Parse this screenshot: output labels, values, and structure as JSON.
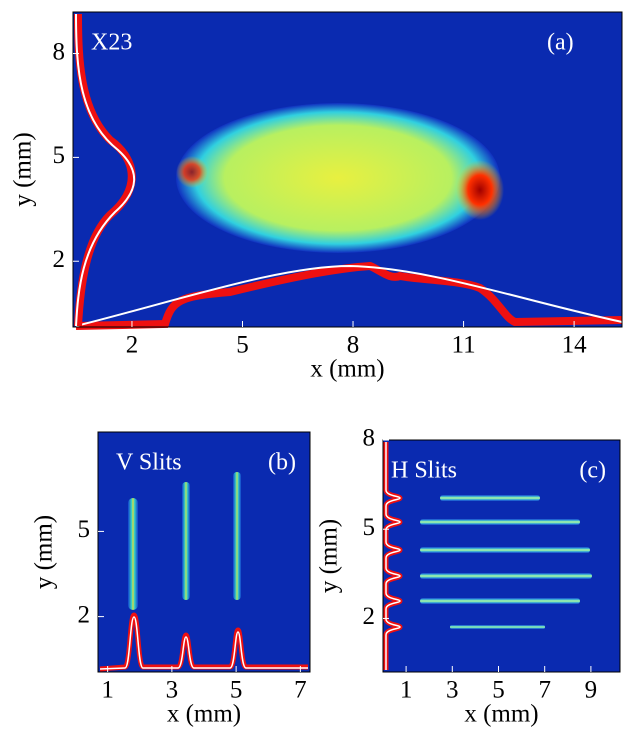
{
  "chart_data": [
    {
      "type": "image",
      "annotation": "X23",
      "panel_label": "(a)",
      "xlabel": "x (mm)",
      "ylabel": "y (mm)",
      "xlim": [
        0.4,
        15.3
      ],
      "ylim": [
        0.1,
        9.2
      ],
      "xticks": [
        2,
        5,
        8,
        11,
        14
      ],
      "yticks": [
        2,
        5,
        8
      ]
    },
    {
      "type": "image",
      "annotation": "V Slits",
      "panel_label": "(b)",
      "xlabel": "x (mm)",
      "ylabel": "y (mm)",
      "xlim": [
        0.7,
        7.3
      ],
      "ylim": [
        0.05,
        8.5
      ],
      "xticks": [
        1,
        3,
        5,
        7
      ],
      "yticks": [
        2,
        5
      ]
    },
    {
      "type": "image",
      "annotation": "H Slits",
      "panel_label": "(c)",
      "xlabel": "x (mm)",
      "ylabel": "y (mm)",
      "xlim": [
        0,
        10.26
      ],
      "ylim": [
        0.2,
        8
      ],
      "xticks": [
        1,
        3,
        5,
        7,
        9
      ],
      "yticks": [
        2,
        5,
        8
      ]
    }
  ]
}
